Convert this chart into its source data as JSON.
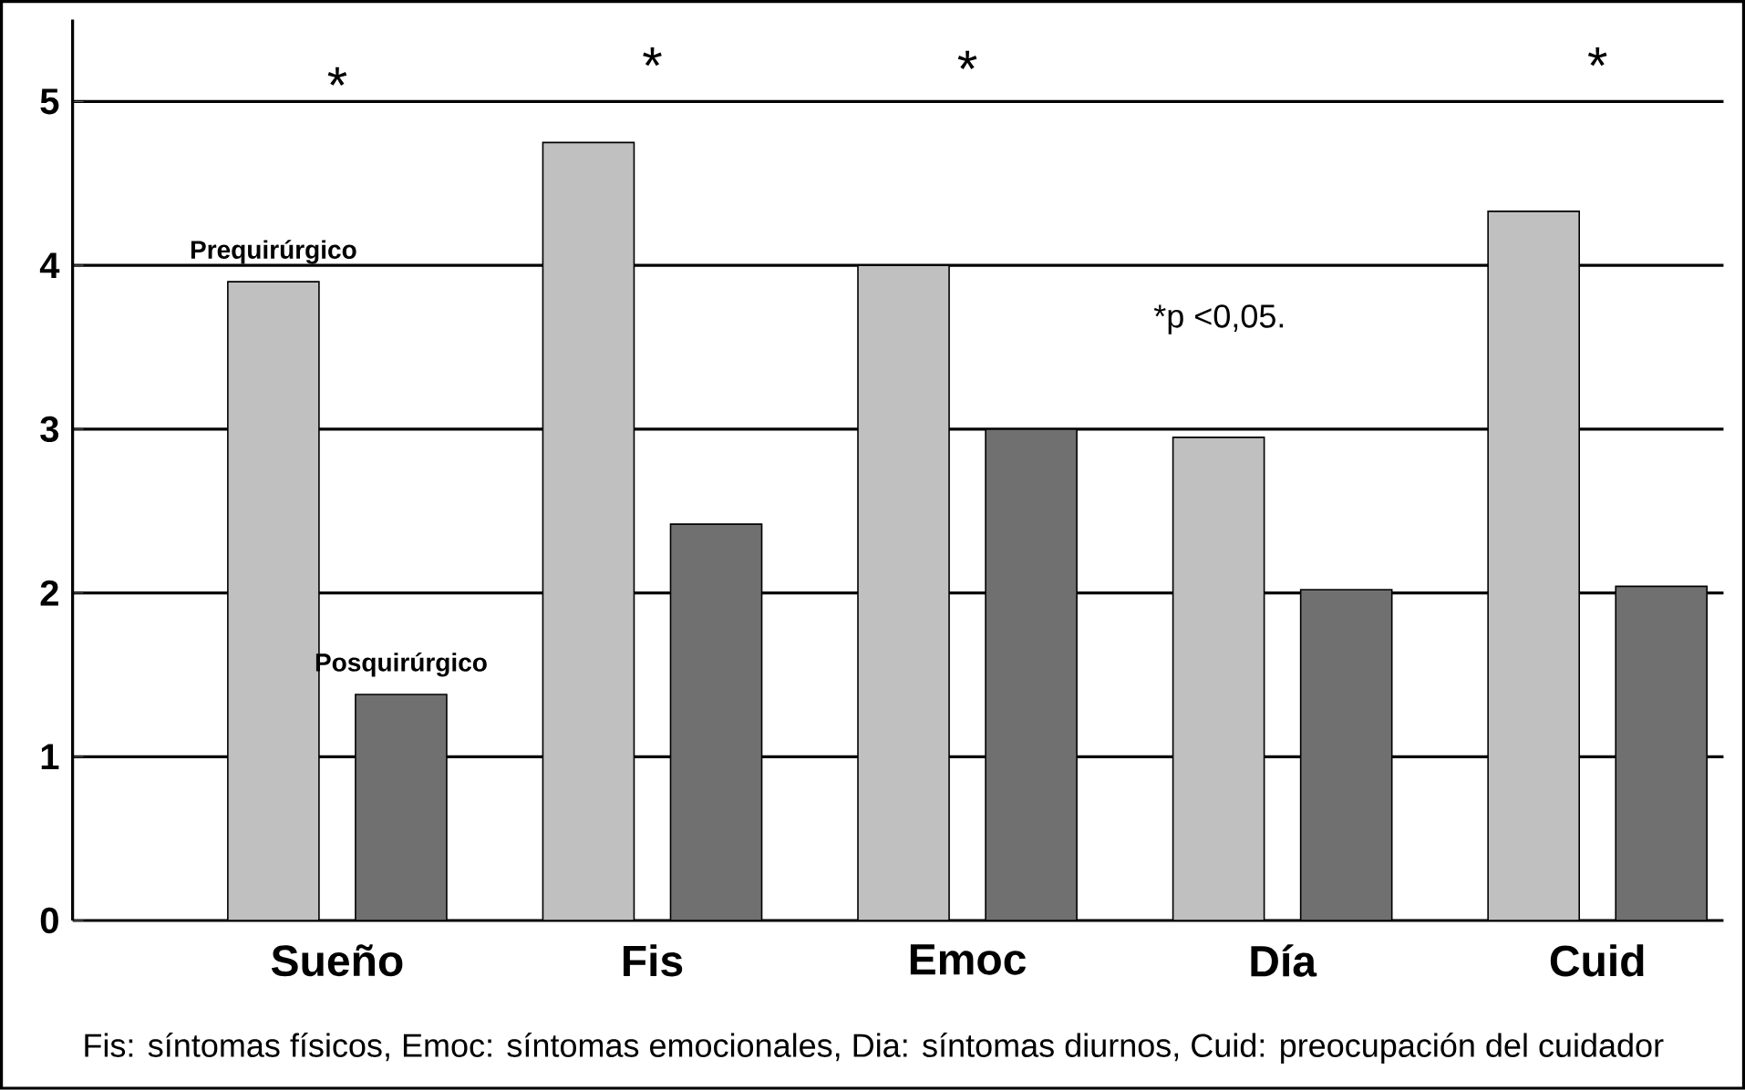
{
  "chart_data": {
    "type": "bar",
    "categories": [
      "Sueño",
      "Fis",
      "Emoc",
      "Día",
      "Cuid"
    ],
    "series": [
      {
        "name": "Prequirúrgico",
        "color": "#c0c0c0",
        "values": [
          3.9,
          4.75,
          4.0,
          2.95,
          4.33
        ]
      },
      {
        "name": "Posquirúrgico",
        "color": "#707070",
        "values": [
          1.38,
          2.42,
          3.0,
          2.02,
          2.04
        ]
      }
    ],
    "ylim": [
      0,
      5.5
    ],
    "yticks": [
      0,
      1,
      2,
      3,
      4,
      5
    ],
    "grid": "y",
    "annotations": [
      "*",
      "*",
      "*",
      "*",
      "*p <0,05.",
      "Fis: síntomas físicos, Emoc: síntomas emocionales, Dia: síntomas diurnos, Cuid: preocupación del cuidador"
    ]
  }
}
